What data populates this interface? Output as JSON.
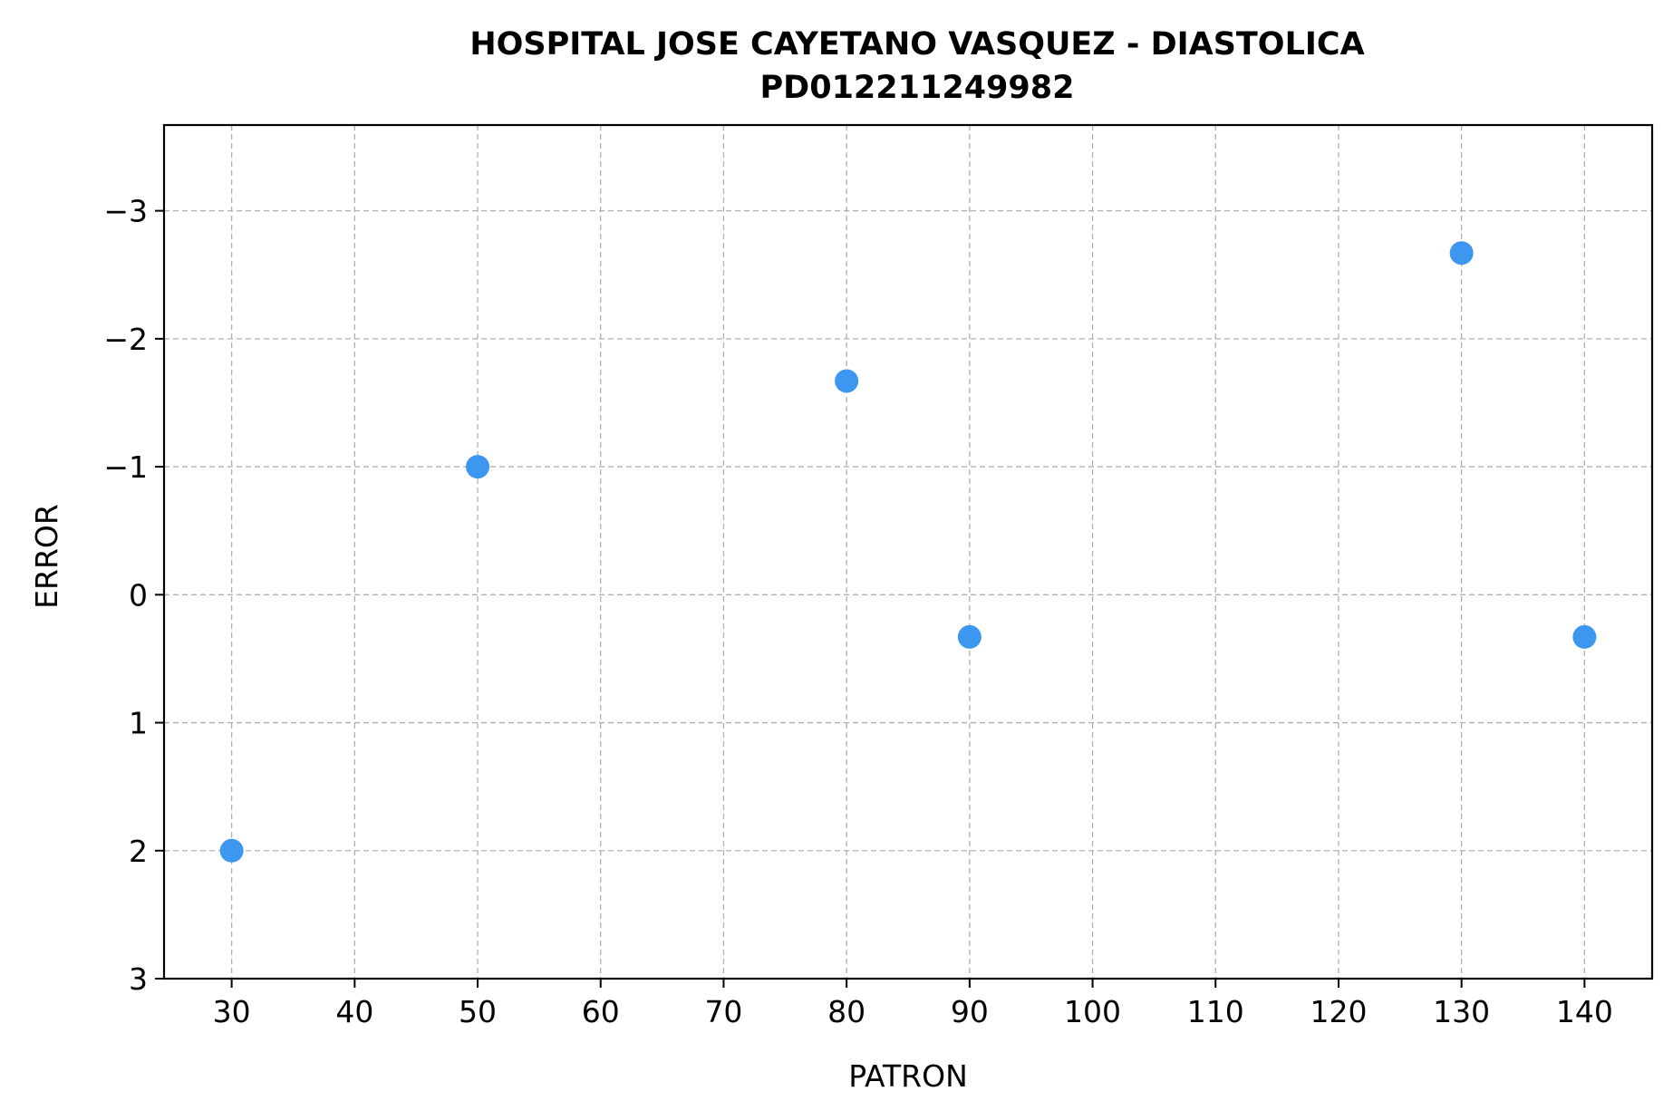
{
  "chart_data": {
    "type": "scatter",
    "title": "HOSPITAL JOSE CAYETANO VASQUEZ - DIASTOLICA",
    "subtitle": "PD012211249982",
    "xlabel": "PATRON",
    "ylabel": "ERROR",
    "xlim": [
      24.5,
      145.5
    ],
    "ylim": [
      3,
      -3.67
    ],
    "y_inverted": true,
    "grid": true,
    "x_ticks": [
      30,
      40,
      50,
      60,
      70,
      80,
      90,
      100,
      110,
      120,
      130,
      140
    ],
    "x_tick_labels": [
      "30",
      "40",
      "50",
      "60",
      "70",
      "80",
      "90",
      "100",
      "110",
      "120",
      "130",
      "140"
    ],
    "y_ticks": [
      -3,
      -2,
      -1,
      0,
      1,
      2,
      3
    ],
    "y_tick_labels": [
      "−3",
      "−2",
      "−1",
      "0",
      "1",
      "2",
      "3"
    ],
    "marker_color": "#3d97f0",
    "series": [
      {
        "x": [
          30,
          50,
          80,
          90,
          130,
          140
        ],
        "y": [
          2,
          -1,
          -1.67,
          0.33,
          -2.67,
          0.33
        ]
      }
    ]
  }
}
